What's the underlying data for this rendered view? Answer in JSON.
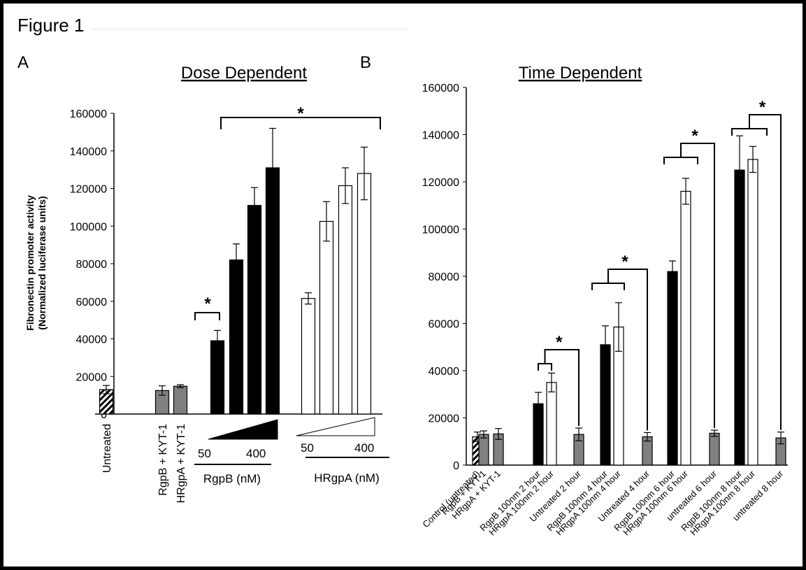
{
  "figure_title": "Figure 1",
  "chart_data": [
    {
      "panel_label": "A",
      "type": "bar",
      "title": "Dose Dependent",
      "ylabel": "Fibronectin promoter activity\n(Normalized luciferase units)",
      "xlabel": "",
      "ylim": [
        0,
        160000
      ],
      "yticks": [
        0,
        20000,
        40000,
        60000,
        80000,
        100000,
        120000,
        140000,
        160000
      ],
      "grid": false,
      "categories": [
        "Untreated",
        "RgpB + KYT-1",
        "HRgpA + KYT-1",
        "RgpB 1",
        "RgpB 2",
        "RgpB 3",
        "RgpB 4",
        "HRgpA 1",
        "HRgpA 2",
        "HRgpA 3",
        "HRgpA 4"
      ],
      "category_labels": [
        "Untreated",
        "RgpB + KYT-1",
        "HRgpA + KYT-1"
      ],
      "values": [
        13000,
        12500,
        14800,
        39000,
        82000,
        111000,
        131000,
        61500,
        102500,
        121500,
        128000
      ],
      "errors": [
        2200,
        2500,
        800,
        5500,
        8500,
        9500,
        21000,
        3000,
        10500,
        9500,
        14000
      ],
      "fills": [
        "hatched",
        "gray",
        "gray",
        "black",
        "black",
        "black",
        "black",
        "white",
        "white",
        "white",
        "white"
      ],
      "dose_groups": [
        {
          "name": "RgpB (nM)",
          "low": "50",
          "high": "400",
          "fill": "black"
        },
        {
          "name": "HRgpA (nM)",
          "low": "50",
          "high": "400",
          "fill": "white"
        }
      ],
      "significance": [
        "*",
        "*"
      ]
    },
    {
      "panel_label": "B",
      "type": "bar",
      "title": "Time Dependent",
      "ylabel": "",
      "xlabel": "",
      "ylim": [
        0,
        160000
      ],
      "yticks": [
        0,
        20000,
        40000,
        60000,
        80000,
        100000,
        120000,
        140000,
        160000
      ],
      "grid": false,
      "categories": [
        "Control (untreated)",
        "RgpB + KYT-1",
        "HRgpA + KYT-1",
        "RgpB 100nm 2 hour",
        "HRgpA 100nm 2 hour",
        "Untreated 2 hour",
        "RgpB 100nm 4 hour",
        "HRgpA 100nm 4 hour",
        "Untreated 4 hour",
        "RgpB 100nm 6 hour",
        "HRgpA 100nm 6 hour",
        "untreated 6 hour",
        "RgpB 100nm 8 hour",
        "HRgpA 100nm 8 hour",
        "untreated 8 hour"
      ],
      "values": [
        12000,
        13000,
        13200,
        26000,
        35000,
        13000,
        51000,
        58500,
        12000,
        82000,
        116000,
        13500,
        125000,
        129500,
        11500
      ],
      "errors": [
        2000,
        1500,
        2300,
        4800,
        4000,
        2700,
        8000,
        10300,
        1800,
        4500,
        5500,
        1300,
        14500,
        5500,
        2500
      ],
      "fills": [
        "hatched",
        "gray",
        "gray",
        "black",
        "white",
        "gray",
        "black",
        "white",
        "gray",
        "black",
        "white",
        "gray",
        "black",
        "white",
        "gray"
      ],
      "significance": [
        "*",
        "*",
        "*",
        "*"
      ]
    }
  ]
}
